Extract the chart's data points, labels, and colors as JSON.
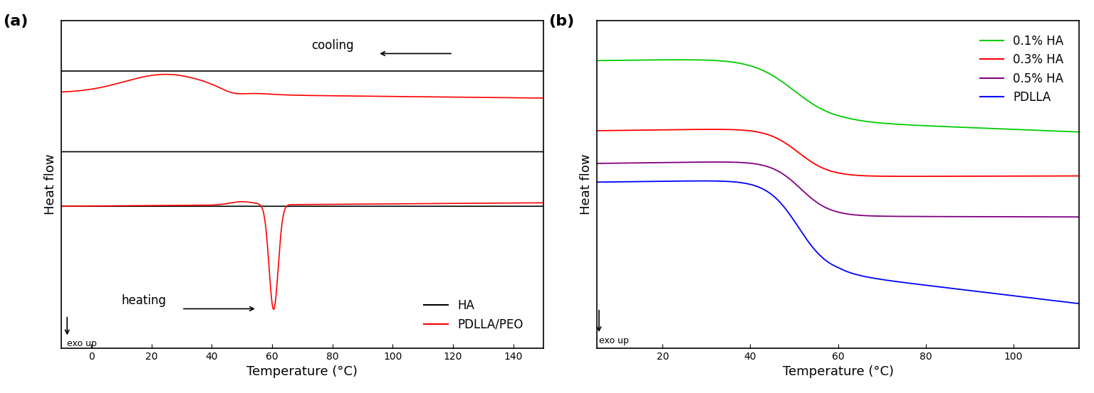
{
  "panel_a": {
    "xlim": [
      -10,
      150
    ],
    "xticks": [
      0,
      20,
      40,
      60,
      80,
      100,
      120,
      140
    ],
    "xlabel": "Temperature (°C)",
    "ylabel": "Heat flow",
    "label": "(a)",
    "cooling_annotation": "cooling",
    "heating_annotation": "heating",
    "legend_entries": [
      "HA",
      "PDLLA/PEO"
    ],
    "legend_colors": [
      "black",
      "red"
    ]
  },
  "panel_b": {
    "xlim": [
      5,
      115
    ],
    "xticks": [
      20,
      40,
      60,
      80,
      100
    ],
    "xlabel": "Temperature (°C)",
    "ylabel": "Heat flow",
    "label": "(b)",
    "legend_entries": [
      "0.1% HA",
      "0.3% HA",
      "0.5% HA",
      "PDLLA"
    ],
    "legend_colors": [
      "#00cc00",
      "red",
      "purple",
      "blue"
    ]
  },
  "background_color": "white",
  "spine_color": "black",
  "tick_color": "black",
  "font_size": 12,
  "label_font_size": 13
}
